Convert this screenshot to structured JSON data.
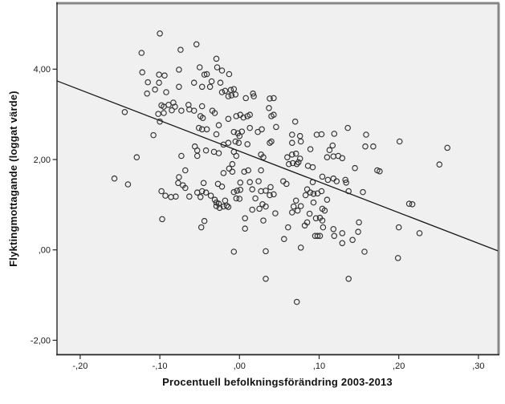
{
  "chart_data": {
    "type": "scatter",
    "title": "",
    "xlabel": "Procentuell befolkningsförändring 2003-2013",
    "ylabel": "Flyktingmottagande (loggat värde)",
    "xlim": [
      -0.2291,
      0.3243
    ],
    "ylim": [
      -2.32,
      5.46
    ],
    "grid": false,
    "legend": false,
    "marker": "open-circle",
    "x_ticks": [
      {
        "v": -0.2,
        "label": "-,20"
      },
      {
        "v": -0.1,
        "label": "-,10"
      },
      {
        "v": 0.0,
        "label": ",00"
      },
      {
        "v": 0.1,
        "label": ",10"
      },
      {
        "v": 0.2,
        "label": ",20"
      },
      {
        "v": 0.3,
        "label": ",30"
      }
    ],
    "y_ticks": [
      {
        "v": -2.0,
        "label": "-2,00"
      },
      {
        "v": 0.0,
        "label": ",00"
      },
      {
        "v": 2.0,
        "label": "2,00"
      },
      {
        "v": 4.0,
        "label": "4,00"
      }
    ],
    "fit_line": {
      "x1": -0.2291,
      "y1": 3.74,
      "x2": 0.3243,
      "y2": -0.02
    },
    "colors": {
      "plot_bg": "#f0f0f0",
      "frame_gray": "#878787",
      "axis": "#262626",
      "marker": "#333333",
      "fit_line": "#1a1a1a",
      "text": "#1a1a1a"
    },
    "points": [
      [
        -0.1,
        4.79
      ],
      [
        -0.123,
        4.36
      ],
      [
        -0.122,
        3.93
      ],
      [
        -0.101,
        3.88
      ],
      [
        -0.094,
        3.86
      ],
      [
        -0.115,
        3.71
      ],
      [
        -0.101,
        3.7
      ],
      [
        -0.106,
        3.55
      ],
      [
        -0.116,
        3.46
      ],
      [
        -0.092,
        3.49
      ],
      [
        -0.098,
        3.2
      ],
      [
        -0.095,
        3.17
      ],
      [
        -0.144,
        3.05
      ],
      [
        -0.102,
        3.01
      ],
      [
        -0.095,
        3.03
      ],
      [
        -0.1,
        2.84
      ],
      [
        -0.108,
        2.54
      ],
      [
        -0.129,
        2.05
      ],
      [
        -0.157,
        1.58
      ],
      [
        -0.14,
        1.45
      ],
      [
        -0.098,
        1.3
      ],
      [
        -0.093,
        1.2
      ],
      [
        -0.097,
        0.68
      ],
      [
        -0.054,
        4.55
      ],
      [
        -0.074,
        4.43
      ],
      [
        -0.029,
        4.23
      ],
      [
        -0.05,
        4.04
      ],
      [
        -0.041,
        3.89
      ],
      [
        -0.028,
        4.04
      ],
      [
        -0.022,
        3.97
      ],
      [
        -0.013,
        3.89
      ],
      [
        -0.044,
        3.88
      ],
      [
        -0.076,
        3.99
      ],
      [
        -0.076,
        3.61
      ],
      [
        -0.057,
        3.7
      ],
      [
        -0.047,
        3.61
      ],
      [
        -0.035,
        3.73
      ],
      [
        -0.037,
        3.61
      ],
      [
        -0.024,
        3.7
      ],
      [
        -0.018,
        3.52
      ],
      [
        -0.011,
        3.54
      ],
      [
        -0.007,
        3.56
      ],
      [
        -0.022,
        3.49
      ],
      [
        -0.014,
        3.4
      ],
      [
        -0.01,
        3.42
      ],
      [
        -0.005,
        3.44
      ],
      [
        0.008,
        3.36
      ],
      [
        0.017,
        3.46
      ],
      [
        0.018,
        3.4
      ],
      [
        0.038,
        3.35
      ],
      [
        0.043,
        3.36
      ],
      [
        -0.083,
        3.26
      ],
      [
        -0.081,
        3.17
      ],
      [
        -0.089,
        3.21
      ],
      [
        -0.085,
        3.09
      ],
      [
        -0.064,
        3.21
      ],
      [
        -0.063,
        3.11
      ],
      [
        -0.073,
        3.08
      ],
      [
        -0.057,
        3.08
      ],
      [
        -0.047,
        3.18
      ],
      [
        -0.049,
        2.96
      ],
      [
        -0.046,
        2.92
      ],
      [
        -0.034,
        3.08
      ],
      [
        -0.031,
        3.03
      ],
      [
        -0.014,
        2.9
      ],
      [
        -0.004,
        2.96
      ],
      [
        0.001,
        2.99
      ],
      [
        0.005,
        2.93
      ],
      [
        0.01,
        2.96
      ],
      [
        0.013,
        2.99
      ],
      [
        0.037,
        3.14
      ],
      [
        0.04,
        2.96
      ],
      [
        0.043,
        2.99
      ],
      [
        -0.051,
        2.7
      ],
      [
        -0.047,
        2.67
      ],
      [
        -0.041,
        2.67
      ],
      [
        -0.029,
        2.56
      ],
      [
        -0.026,
        2.76
      ],
      [
        -0.007,
        2.61
      ],
      [
        -0.002,
        2.58
      ],
      [
        0.0,
        2.52
      ],
      [
        0.003,
        2.62
      ],
      [
        0.013,
        2.7
      ],
      [
        0.028,
        2.67
      ],
      [
        0.023,
        2.61
      ],
      [
        -0.014,
        2.37
      ],
      [
        -0.02,
        2.33
      ],
      [
        -0.005,
        2.4
      ],
      [
        -0.001,
        2.37
      ],
      [
        0.01,
        2.34
      ],
      [
        0.038,
        2.37
      ],
      [
        0.04,
        2.4
      ],
      [
        -0.056,
        2.29
      ],
      [
        -0.053,
        2.2
      ],
      [
        -0.042,
        2.2
      ],
      [
        -0.073,
        2.08
      ],
      [
        -0.053,
        2.08
      ],
      [
        -0.032,
        2.17
      ],
      [
        -0.026,
        2.14
      ],
      [
        -0.007,
        2.17
      ],
      [
        -0.004,
        2.08
      ],
      [
        0.027,
        2.11
      ],
      [
        0.03,
        2.05
      ],
      [
        -0.009,
        1.9
      ],
      [
        -0.013,
        1.8
      ],
      [
        -0.009,
        1.73
      ],
      [
        -0.02,
        1.7
      ],
      [
        0.006,
        1.73
      ],
      [
        0.011,
        1.76
      ],
      [
        0.027,
        1.76
      ],
      [
        -0.068,
        1.76
      ],
      [
        -0.076,
        1.61
      ],
      [
        -0.077,
        1.48
      ],
      [
        -0.071,
        1.43
      ],
      [
        -0.068,
        1.37
      ],
      [
        -0.045,
        1.48
      ],
      [
        -0.027,
        1.46
      ],
      [
        -0.022,
        1.4
      ],
      [
        0.001,
        1.49
      ],
      [
        0.013,
        1.5
      ],
      [
        0.024,
        1.52
      ],
      [
        -0.086,
        1.17
      ],
      [
        -0.08,
        1.18
      ],
      [
        -0.063,
        1.18
      ],
      [
        -0.053,
        1.27
      ],
      [
        -0.047,
        1.3
      ],
      [
        -0.042,
        1.27
      ],
      [
        -0.049,
        1.17
      ],
      [
        -0.036,
        1.2
      ],
      [
        -0.031,
        1.11
      ],
      [
        -0.029,
        1.05
      ],
      [
        -0.026,
        1.02
      ],
      [
        -0.029,
        0.97
      ],
      [
        -0.025,
        0.93
      ],
      [
        -0.02,
        0.96
      ],
      [
        -0.016,
        0.98
      ],
      [
        -0.014,
        0.95
      ],
      [
        -0.018,
        1.09
      ],
      [
        -0.007,
        1.28
      ],
      [
        -0.003,
        1.31
      ],
      [
        0.001,
        1.33
      ],
      [
        -0.004,
        1.14
      ],
      [
        0.0,
        1.13
      ],
      [
        0.016,
        1.34
      ],
      [
        0.027,
        1.3
      ],
      [
        0.033,
        1.31
      ],
      [
        0.039,
        1.39
      ],
      [
        0.043,
        1.23
      ],
      [
        0.038,
        1.21
      ],
      [
        0.02,
        1.14
      ],
      [
        0.029,
        1.01
      ],
      [
        0.033,
        0.96
      ],
      [
        0.025,
        0.91
      ],
      [
        0.016,
        0.89
      ],
      [
        0.045,
        0.81
      ],
      [
        0.007,
        0.7
      ],
      [
        0.03,
        0.65
      ],
      [
        -0.044,
        0.64
      ],
      [
        -0.048,
        0.5
      ],
      [
        0.007,
        0.47
      ],
      [
        -0.007,
        -0.04
      ],
      [
        0.033,
        -0.03
      ],
      [
        0.033,
        -0.64
      ],
      [
        0.07,
        2.84
      ],
      [
        0.046,
        2.72
      ],
      [
        0.066,
        2.55
      ],
      [
        0.076,
        2.52
      ],
      [
        0.066,
        2.37
      ],
      [
        0.077,
        2.4
      ],
      [
        0.097,
        2.55
      ],
      [
        0.103,
        2.56
      ],
      [
        0.119,
        2.57
      ],
      [
        0.136,
        2.7
      ],
      [
        0.159,
        2.55
      ],
      [
        0.117,
        2.31
      ],
      [
        0.089,
        2.23
      ],
      [
        0.113,
        2.21
      ],
      [
        0.158,
        2.29
      ],
      [
        0.168,
        2.29
      ],
      [
        0.06,
        2.05
      ],
      [
        0.066,
        2.11
      ],
      [
        0.071,
        2.13
      ],
      [
        0.076,
        2.02
      ],
      [
        0.062,
        1.9
      ],
      [
        0.067,
        1.92
      ],
      [
        0.072,
        1.9
      ],
      [
        0.074,
        1.94
      ],
      [
        0.11,
        2.05
      ],
      [
        0.118,
        2.07
      ],
      [
        0.124,
        2.08
      ],
      [
        0.129,
        2.03
      ],
      [
        0.086,
        1.86
      ],
      [
        0.092,
        1.83
      ],
      [
        0.145,
        1.81
      ],
      [
        0.173,
        1.76
      ],
      [
        0.176,
        1.74
      ],
      [
        0.104,
        1.62
      ],
      [
        0.118,
        1.58
      ],
      [
        0.133,
        1.55
      ],
      [
        0.201,
        2.4
      ],
      [
        0.261,
        2.26
      ],
      [
        0.251,
        1.89
      ],
      [
        0.055,
        1.52
      ],
      [
        0.059,
        1.46
      ],
      [
        0.092,
        1.5
      ],
      [
        0.111,
        1.55
      ],
      [
        0.122,
        1.52
      ],
      [
        0.134,
        1.49
      ],
      [
        0.085,
        1.34
      ],
      [
        0.089,
        1.27
      ],
      [
        0.093,
        1.24
      ],
      [
        0.098,
        1.25
      ],
      [
        0.103,
        1.3
      ],
      [
        0.083,
        1.21
      ],
      [
        0.137,
        1.3
      ],
      [
        0.155,
        1.28
      ],
      [
        0.071,
        1.09
      ],
      [
        0.077,
        0.97
      ],
      [
        0.068,
        0.96
      ],
      [
        0.073,
        0.87
      ],
      [
        0.066,
        0.83
      ],
      [
        0.11,
        1.11
      ],
      [
        0.093,
        1.05
      ],
      [
        0.104,
        0.91
      ],
      [
        0.107,
        0.87
      ],
      [
        0.088,
        0.8
      ],
      [
        0.096,
        0.7
      ],
      [
        0.101,
        0.71
      ],
      [
        0.104,
        0.65
      ],
      [
        0.085,
        0.61
      ],
      [
        0.061,
        0.5
      ],
      [
        0.082,
        0.54
      ],
      [
        0.105,
        0.5
      ],
      [
        0.118,
        0.46
      ],
      [
        0.119,
        0.31
      ],
      [
        0.095,
        0.31
      ],
      [
        0.098,
        0.31
      ],
      [
        0.101,
        0.31
      ],
      [
        0.129,
        0.37
      ],
      [
        0.15,
        0.61
      ],
      [
        0.149,
        0.4
      ],
      [
        0.129,
        0.15
      ],
      [
        0.142,
        0.22
      ],
      [
        0.056,
        0.24
      ],
      [
        0.077,
        0.05
      ],
      [
        0.157,
        -0.04
      ],
      [
        0.137,
        -0.64
      ],
      [
        0.072,
        -1.15
      ],
      [
        0.213,
        1.02
      ],
      [
        0.217,
        1.01
      ],
      [
        0.2,
        0.5
      ],
      [
        0.226,
        0.37
      ],
      [
        0.199,
        -0.18
      ]
    ]
  }
}
